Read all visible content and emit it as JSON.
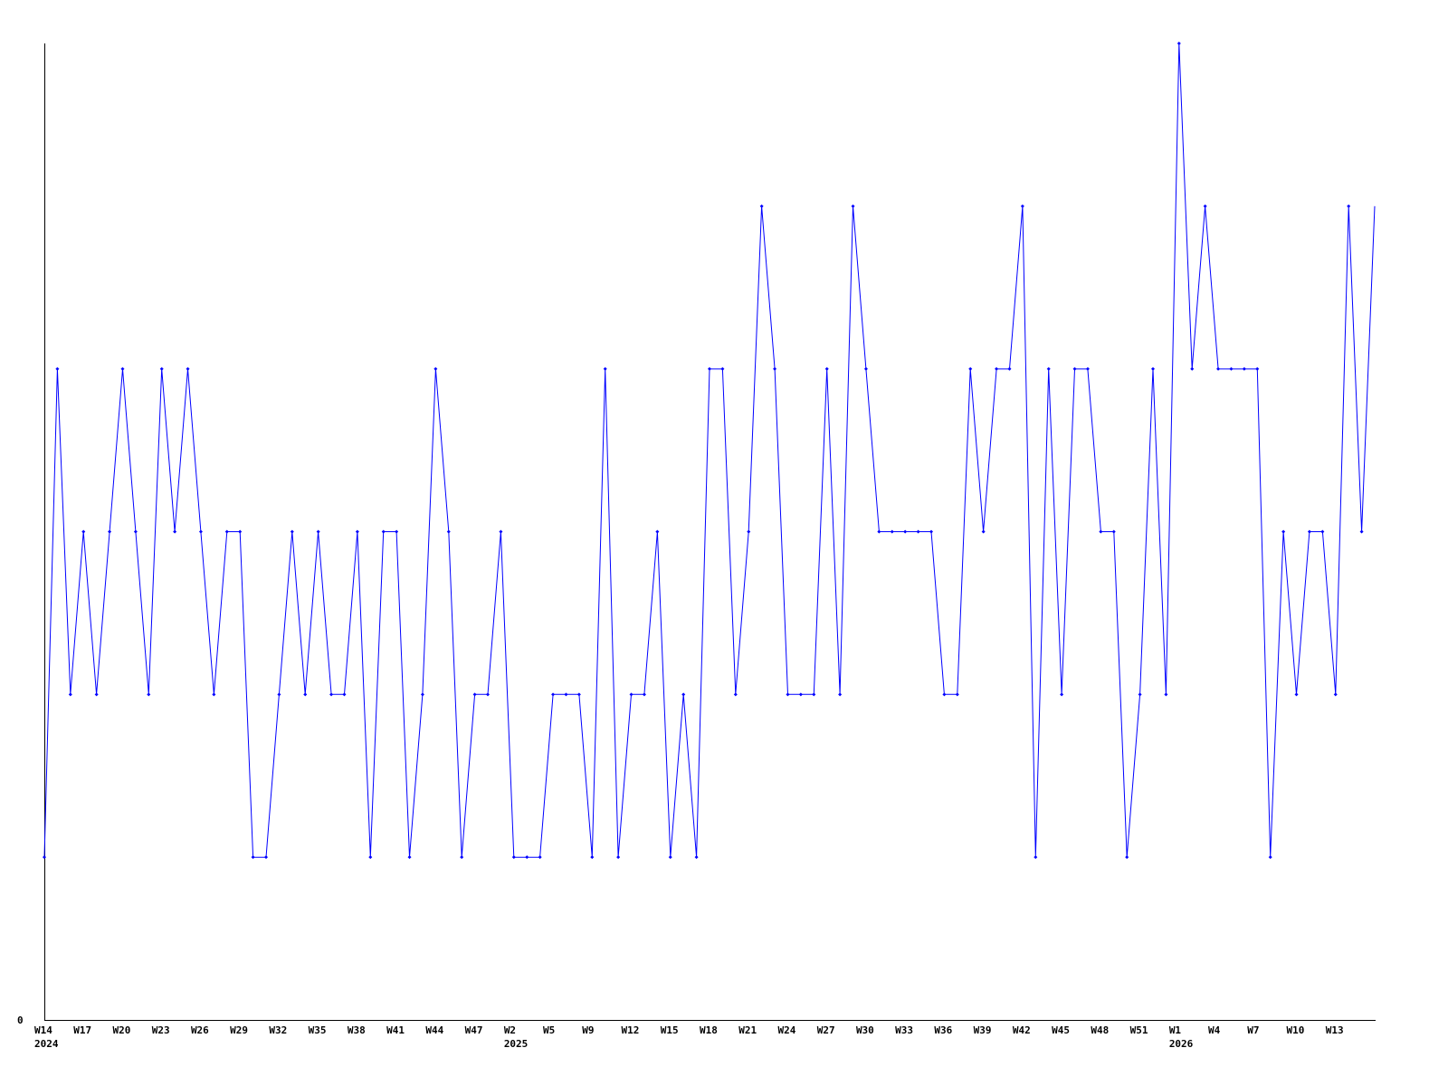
{
  "chart_data": {
    "type": "line",
    "title": "",
    "xlabel": "",
    "ylabel": "",
    "ylim": [
      0,
      6
    ],
    "y_tick_labels": [
      "0"
    ],
    "grid": false,
    "line_color": "#0000ff",
    "axis_color": "#000000",
    "x_tick_labels": [
      "W14",
      "W17",
      "W20",
      "W23",
      "W26",
      "W29",
      "W32",
      "W35",
      "W38",
      "W41",
      "W44",
      "W47",
      "W2",
      "W5",
      "W9",
      "W12",
      "W15",
      "W18",
      "W21",
      "W24",
      "W27",
      "W30",
      "W33",
      "W36",
      "W39",
      "W42",
      "W45",
      "W48",
      "W51",
      "W1",
      "W4",
      "W7",
      "W10",
      "W13"
    ],
    "year_labels": [
      {
        "label": "2024",
        "under_tick": "W14"
      },
      {
        "label": "2025",
        "under_tick": "W2"
      },
      {
        "label": "2026",
        "under_tick": "W1"
      }
    ],
    "series": [
      {
        "values": [
          1,
          4,
          2,
          3,
          2,
          3,
          4,
          3,
          2,
          4,
          3,
          4,
          3,
          2,
          3,
          3,
          1,
          1,
          2,
          3,
          2,
          3,
          2,
          2,
          3,
          1,
          3,
          3,
          1,
          2,
          4,
          3,
          1,
          2,
          2,
          3,
          1,
          1,
          1,
          2,
          2,
          2,
          1,
          4,
          1,
          2,
          2,
          3,
          1,
          2,
          1,
          4,
          4,
          2,
          3,
          5,
          4,
          2,
          2,
          2,
          4,
          2,
          5,
          4,
          3,
          3,
          3,
          3,
          3,
          2,
          2,
          4,
          3,
          4,
          4,
          5,
          1,
          4,
          2,
          4,
          4,
          3,
          3,
          1,
          2,
          4,
          2,
          6,
          4,
          5,
          4,
          4,
          4,
          4,
          1,
          3,
          2,
          3,
          3,
          2,
          5,
          3,
          5
        ]
      }
    ]
  }
}
